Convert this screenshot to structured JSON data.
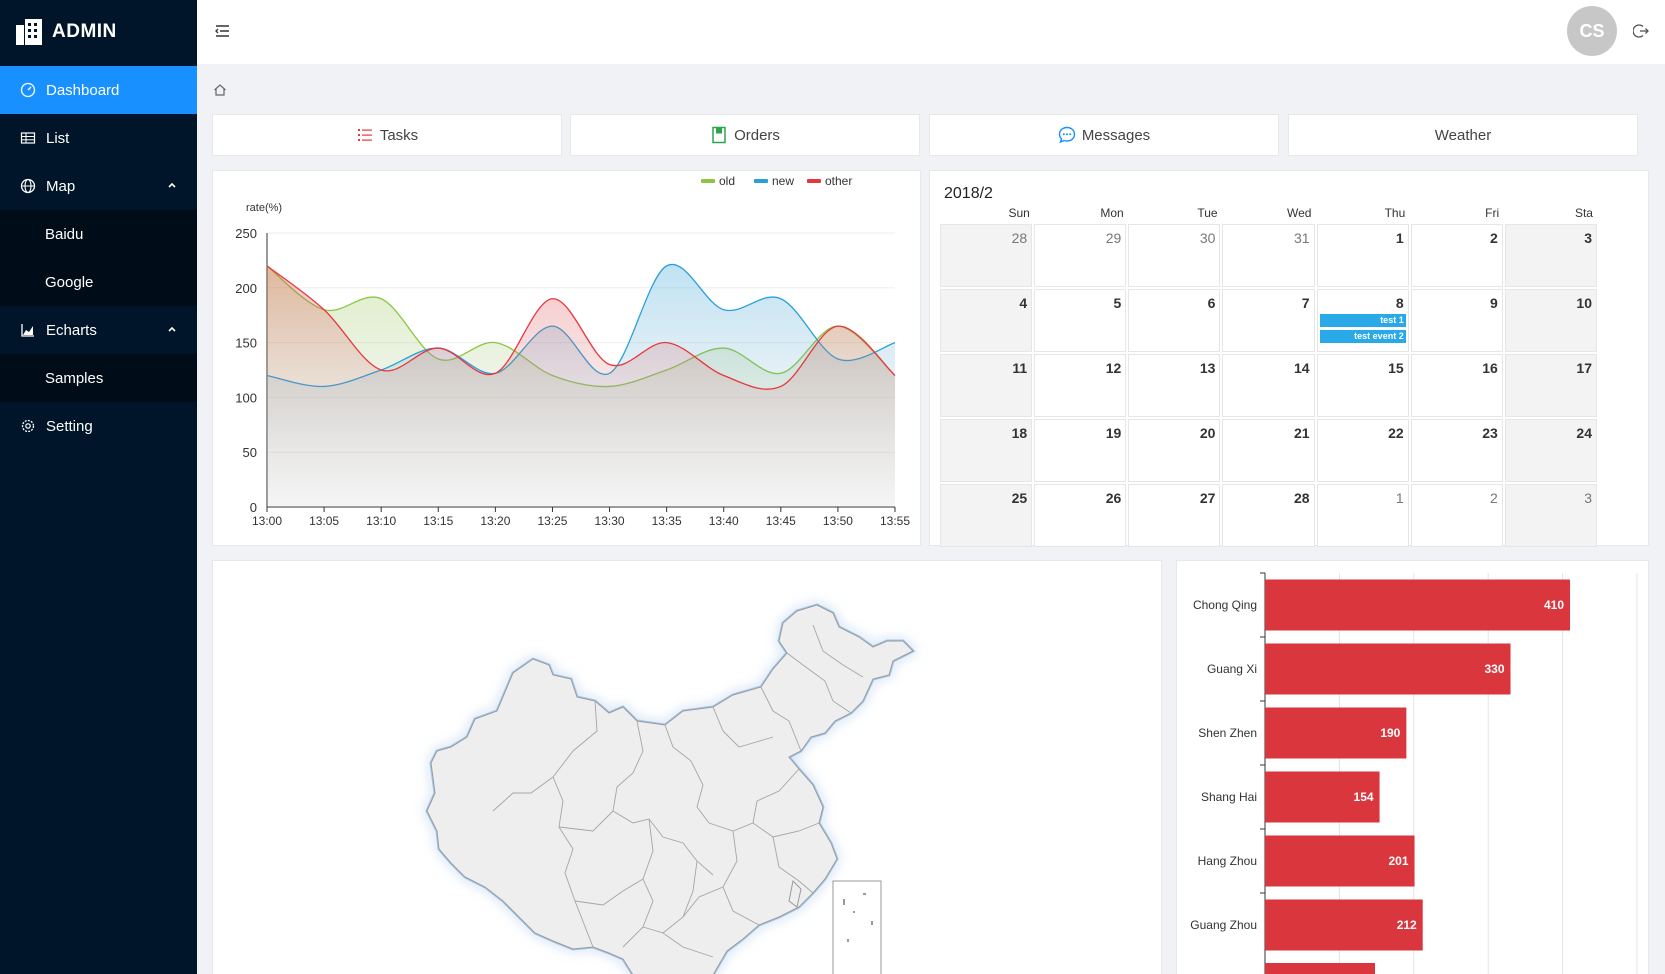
{
  "sidebar": {
    "logo_text": "ADMIN",
    "items": [
      {
        "label": "Dashboard",
        "icon": "dashboard-icon",
        "active": true
      },
      {
        "label": "List",
        "icon": "table-icon"
      },
      {
        "label": "Map",
        "icon": "globe-icon",
        "children": [
          {
            "label": "Baidu"
          },
          {
            "label": "Google"
          }
        ]
      },
      {
        "label": "Echarts",
        "icon": "area-chart-icon",
        "children": [
          {
            "label": "Samples"
          }
        ]
      },
      {
        "label": "Setting",
        "icon": "gear-icon"
      }
    ]
  },
  "header": {
    "avatar_text": "CS",
    "fold_icon": "menu-fold-icon",
    "logout_icon": "logout-icon"
  },
  "breadcrumb": {
    "icon": "home-icon"
  },
  "nav_cards": [
    {
      "label": "Tasks",
      "icon": "list-icon",
      "color": "#e8363e"
    },
    {
      "label": "Orders",
      "icon": "book-icon",
      "color": "#2da44e"
    },
    {
      "label": "Messages",
      "icon": "message-icon",
      "color": "#1890ff"
    },
    {
      "label": "Weather",
      "icon": "",
      "color": "#444"
    }
  ],
  "line_chart": {
    "chart_data": {
      "type": "area",
      "ylabel": "rate(%)",
      "ylim": [
        0,
        250
      ],
      "yticks": [
        0,
        50,
        100,
        150,
        200,
        250
      ],
      "categories": [
        "13:00",
        "13:05",
        "13:10",
        "13:15",
        "13:20",
        "13:25",
        "13:30",
        "13:35",
        "13:40",
        "13:45",
        "13:50",
        "13:55"
      ],
      "series": [
        {
          "name": "old",
          "color": "#8cc63f",
          "values": [
            220,
            180,
            190,
            135,
            150,
            120,
            110,
            125,
            145,
            122,
            165,
            120
          ]
        },
        {
          "name": "new",
          "color": "#2a9fd8",
          "values": [
            120,
            110,
            125,
            145,
            122,
            165,
            122,
            220,
            180,
            190,
            135,
            150
          ]
        },
        {
          "name": "other",
          "color": "#e8363e",
          "values": [
            220,
            180,
            125,
            145,
            122,
            190,
            130,
            150,
            120,
            110,
            165,
            120
          ]
        }
      ],
      "legend_position": "top-right",
      "grid": true
    }
  },
  "calendar": {
    "title": "2018/2",
    "weekdays": [
      "Sun",
      "Mon",
      "Tue",
      "Wed",
      "Thu",
      "Fri",
      "Sta"
    ],
    "weeks": [
      [
        {
          "d": "28",
          "o": true
        },
        {
          "d": "29",
          "o": true
        },
        {
          "d": "30",
          "o": true
        },
        {
          "d": "31",
          "o": true
        },
        {
          "d": "1"
        },
        {
          "d": "2"
        },
        {
          "d": "3"
        }
      ],
      [
        {
          "d": "4"
        },
        {
          "d": "5"
        },
        {
          "d": "6"
        },
        {
          "d": "7"
        },
        {
          "d": "8",
          "events": [
            "test 1",
            "test event 2"
          ]
        },
        {
          "d": "9"
        },
        {
          "d": "10"
        }
      ],
      [
        {
          "d": "11"
        },
        {
          "d": "12"
        },
        {
          "d": "13"
        },
        {
          "d": "14"
        },
        {
          "d": "15"
        },
        {
          "d": "16"
        },
        {
          "d": "17"
        }
      ],
      [
        {
          "d": "18"
        },
        {
          "d": "19"
        },
        {
          "d": "20"
        },
        {
          "d": "21"
        },
        {
          "d": "22"
        },
        {
          "d": "23"
        },
        {
          "d": "24"
        }
      ],
      [
        {
          "d": "25"
        },
        {
          "d": "26"
        },
        {
          "d": "27"
        },
        {
          "d": "28"
        },
        {
          "d": "1",
          "o": true
        },
        {
          "d": "2",
          "o": true
        },
        {
          "d": "3",
          "o": true
        }
      ]
    ]
  },
  "map": {
    "fill": "#eeeeee",
    "stroke": "#999999",
    "glow": "#9fc8f0"
  },
  "bar_chart": {
    "chart_data": {
      "type": "bar",
      "orientation": "horizontal",
      "color": "#d9363e",
      "categories": [
        "Chong Qing",
        "Guang Xi",
        "Shen Zhen",
        "Shang Hai",
        "Hang Zhou",
        "Guang Zhou"
      ],
      "values": [
        410,
        330,
        190,
        154,
        201,
        212
      ],
      "xlim": [
        0,
        500
      ],
      "grid": true
    }
  }
}
